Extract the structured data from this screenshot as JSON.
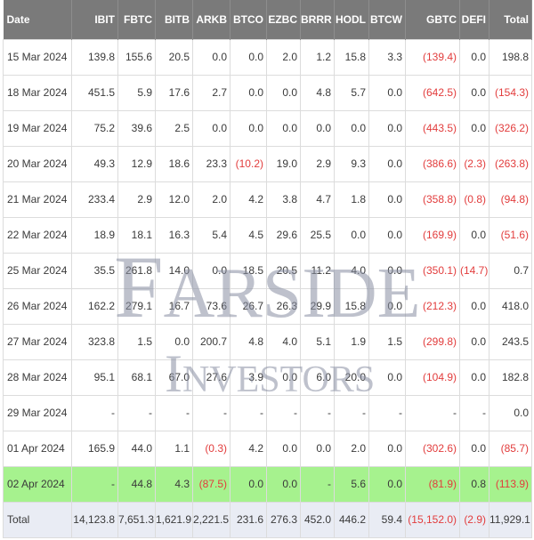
{
  "columns": [
    "Date",
    "IBIT",
    "FBTC",
    "BITB",
    "ARKB",
    "BTCO",
    "EZBC",
    "BRRR",
    "HODL",
    "BTCW",
    "GBTC",
    "DEFI",
    "Total"
  ],
  "rows": [
    {
      "date": "15 Mar 2024",
      "values": [
        "139.8",
        "155.6",
        "20.5",
        "0.0",
        "0.0",
        "2.0",
        "1.2",
        "15.8",
        "3.3",
        "(139.4)",
        "0.0",
        "198.8"
      ]
    },
    {
      "date": "18 Mar 2024",
      "values": [
        "451.5",
        "5.9",
        "17.6",
        "2.7",
        "0.0",
        "0.0",
        "4.8",
        "5.7",
        "0.0",
        "(642.5)",
        "0.0",
        "(154.3)"
      ]
    },
    {
      "date": "19 Mar 2024",
      "values": [
        "75.2",
        "39.6",
        "2.5",
        "0.0",
        "0.0",
        "0.0",
        "0.0",
        "0.0",
        "0.0",
        "(443.5)",
        "0.0",
        "(326.2)"
      ]
    },
    {
      "date": "20 Mar 2024",
      "values": [
        "49.3",
        "12.9",
        "18.6",
        "23.3",
        "(10.2)",
        "19.0",
        "2.9",
        "9.3",
        "0.0",
        "(386.6)",
        "(2.3)",
        "(263.8)"
      ]
    },
    {
      "date": "21 Mar 2024",
      "values": [
        "233.4",
        "2.9",
        "12.0",
        "2.0",
        "4.2",
        "3.8",
        "4.7",
        "1.8",
        "0.0",
        "(358.8)",
        "(0.8)",
        "(94.8)"
      ]
    },
    {
      "date": "22 Mar 2024",
      "values": [
        "18.9",
        "18.1",
        "16.3",
        "5.4",
        "4.5",
        "29.6",
        "25.5",
        "0.0",
        "0.0",
        "(169.9)",
        "0.0",
        "(51.6)"
      ]
    },
    {
      "date": "25 Mar 2024",
      "values": [
        "35.5",
        "261.8",
        "14.0",
        "0.0",
        "18.5",
        "20.5",
        "11.2",
        "4.0",
        "0.0",
        "(350.1)",
        "(14.7)",
        "0.7"
      ]
    },
    {
      "date": "26 Mar 2024",
      "values": [
        "162.2",
        "279.1",
        "16.7",
        "73.6",
        "26.7",
        "26.3",
        "29.9",
        "15.8",
        "0.0",
        "(212.3)",
        "0.0",
        "418.0"
      ]
    },
    {
      "date": "27 Mar 2024",
      "values": [
        "323.8",
        "1.5",
        "0.0",
        "200.7",
        "4.8",
        "4.0",
        "5.1",
        "1.9",
        "1.5",
        "(299.8)",
        "0.0",
        "243.5"
      ]
    },
    {
      "date": "28 Mar 2024",
      "values": [
        "95.1",
        "68.1",
        "67.0",
        "27.6",
        "3.9",
        "0.0",
        "6.0",
        "20.0",
        "0.0",
        "(104.9)",
        "0.0",
        "182.8"
      ]
    },
    {
      "date": "29 Mar 2024",
      "values": [
        "-",
        "-",
        "-",
        "-",
        "-",
        "-",
        "-",
        "-",
        "-",
        "-",
        "-",
        "0.0"
      ]
    },
    {
      "date": "01 Apr 2024",
      "values": [
        "165.9",
        "44.0",
        "1.1",
        "(0.3)",
        "4.2",
        "0.0",
        "0.0",
        "2.0",
        "0.0",
        "(302.6)",
        "0.0",
        "(85.7)"
      ]
    },
    {
      "date": "02 Apr 2024",
      "highlight": true,
      "values": [
        "-",
        "44.8",
        "4.3",
        "(87.5)",
        "0.0",
        "0.0",
        "-",
        "5.6",
        "0.0",
        "(81.9)",
        "0.8",
        "(113.9)"
      ]
    }
  ],
  "total_row": {
    "label": "Total",
    "values": [
      "14,123.8",
      "7,651.3",
      "1,621.9",
      "2,221.5",
      "231.6",
      "276.3",
      "452.0",
      "446.2",
      "59.4",
      "(15,152.0)",
      "(2.9)",
      "11,929.1"
    ]
  },
  "watermark": {
    "line1": "FARSIDE",
    "line2": "INVESTORS"
  },
  "colors": {
    "header_bg": "#7a7a7a",
    "negative": "#e23c3c",
    "highlight_row": "#a6f28e",
    "total_bg": "#e9ecf4",
    "watermark": "#8a90a3"
  }
}
